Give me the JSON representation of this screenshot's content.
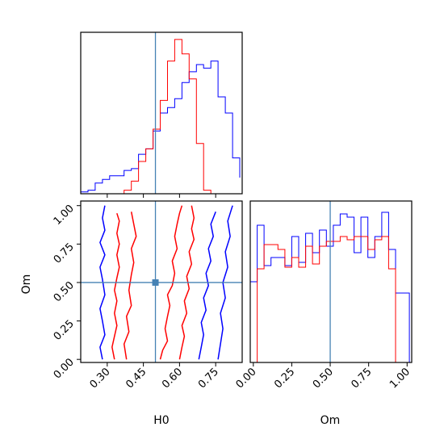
{
  "chart_data": {
    "type": "corner",
    "parameters": [
      "H0",
      "Om"
    ],
    "truths": {
      "H0": 0.5,
      "Om": 0.5
    },
    "colors": {
      "red_run": "#ff0000",
      "blue_run": "#0000ff",
      "truth": "#4682b4"
    },
    "xlabels": [
      "H0",
      "Om"
    ],
    "ylabel": "Om",
    "ticks": {
      "H0": [
        "0.30",
        "0.45",
        "0.60",
        "0.75"
      ],
      "Om": [
        "0.00",
        "0.25",
        "0.50",
        "0.75",
        "1.00"
      ]
    },
    "ranges": {
      "H0": [
        0.19,
        0.86
      ],
      "Om": [
        -0.02,
        1.03
      ]
    },
    "hist_H0": {
      "edges": [
        0.19,
        0.22,
        0.25,
        0.28,
        0.31,
        0.34,
        0.37,
        0.4,
        0.43,
        0.46,
        0.49,
        0.52,
        0.55,
        0.58,
        0.61,
        0.64,
        0.67,
        0.7,
        0.73,
        0.76,
        0.79,
        0.82,
        0.85
      ],
      "series": [
        {
          "color_key": "blue_run",
          "values": [
            0.01,
            0.02,
            0.06,
            0.08,
            0.1,
            0.1,
            0.13,
            0.14,
            0.22,
            0.25,
            0.35,
            0.45,
            0.48,
            0.53,
            0.62,
            0.68,
            0.72,
            0.7,
            0.74,
            0.54,
            0.45,
            0.2,
            0.09
          ]
        },
        {
          "color_key": "red_run",
          "values": [
            0,
            0,
            0,
            0,
            0,
            0,
            0.02,
            0.07,
            0.18,
            0.25,
            0.36,
            0.52,
            0.74,
            0.86,
            0.78,
            0.64,
            0.28,
            0.02,
            0,
            0,
            0,
            0,
            0
          ]
        }
      ]
    },
    "hist_Om": {
      "edges": [
        -0.02,
        0.025,
        0.07,
        0.115,
        0.16,
        0.205,
        0.25,
        0.295,
        0.34,
        0.385,
        0.43,
        0.475,
        0.52,
        0.565,
        0.61,
        0.655,
        0.7,
        0.745,
        0.79,
        0.835,
        0.88,
        0.925,
        0.97,
        1.015
      ],
      "series": [
        {
          "color_key": "blue_run",
          "values": [
            0.5,
            0.85,
            0.6,
            0.65,
            0.65,
            0.6,
            0.78,
            0.62,
            0.8,
            0.68,
            0.82,
            0.72,
            0.85,
            0.92,
            0.9,
            0.68,
            0.9,
            0.65,
            0.78,
            0.93,
            0.7,
            0.43,
            0.43
          ]
        },
        {
          "color_key": "red_run",
          "values": [
            0,
            0.58,
            0.73,
            0.73,
            0.7,
            0.59,
            0.65,
            0.59,
            0.72,
            0.61,
            0.72,
            0.75,
            0.75,
            0.78,
            0.76,
            0.78,
            0.78,
            0.7,
            0.76,
            0.78,
            0.58,
            0,
            0
          ]
        }
      ]
    },
    "contours": [
      {
        "color_key": "red_run",
        "points": [
          [
            0.33,
            0.0
          ],
          [
            0.32,
            0.08
          ],
          [
            0.33,
            0.15
          ],
          [
            0.34,
            0.22
          ],
          [
            0.33,
            0.3
          ],
          [
            0.34,
            0.38
          ],
          [
            0.33,
            0.45
          ],
          [
            0.34,
            0.53
          ],
          [
            0.35,
            0.6
          ],
          [
            0.34,
            0.68
          ],
          [
            0.35,
            0.75
          ],
          [
            0.34,
            0.82
          ],
          [
            0.35,
            0.9
          ],
          [
            0.34,
            0.95
          ]
        ]
      },
      {
        "color_key": "red_run",
        "points": [
          [
            0.38,
            0.0
          ],
          [
            0.37,
            0.1
          ],
          [
            0.39,
            0.18
          ],
          [
            0.38,
            0.28
          ],
          [
            0.4,
            0.35
          ],
          [
            0.39,
            0.45
          ],
          [
            0.4,
            0.55
          ],
          [
            0.41,
            0.63
          ],
          [
            0.4,
            0.72
          ],
          [
            0.42,
            0.8
          ],
          [
            0.41,
            0.88
          ],
          [
            0.4,
            0.96
          ]
        ]
      },
      {
        "color_key": "red_run",
        "points": [
          [
            0.52,
            0.0
          ],
          [
            0.53,
            0.06
          ],
          [
            0.55,
            0.12
          ],
          [
            0.54,
            0.2
          ],
          [
            0.55,
            0.28
          ],
          [
            0.56,
            0.35
          ],
          [
            0.55,
            0.42
          ],
          [
            0.57,
            0.48
          ],
          [
            0.58,
            0.56
          ],
          [
            0.57,
            0.64
          ],
          [
            0.59,
            0.72
          ],
          [
            0.58,
            0.8
          ],
          [
            0.59,
            0.88
          ],
          [
            0.6,
            0.95
          ],
          [
            0.61,
            1.0
          ]
        ]
      },
      {
        "color_key": "red_run",
        "points": [
          [
            0.6,
            0.0
          ],
          [
            0.61,
            0.08
          ],
          [
            0.62,
            0.15
          ],
          [
            0.61,
            0.22
          ],
          [
            0.63,
            0.3
          ],
          [
            0.62,
            0.38
          ],
          [
            0.64,
            0.46
          ],
          [
            0.63,
            0.54
          ],
          [
            0.65,
            0.62
          ],
          [
            0.64,
            0.7
          ],
          [
            0.66,
            0.78
          ],
          [
            0.65,
            0.85
          ],
          [
            0.66,
            0.92
          ],
          [
            0.65,
            1.0
          ]
        ]
      },
      {
        "color_key": "blue_run",
        "points": [
          [
            0.28,
            0.0
          ],
          [
            0.27,
            0.08
          ],
          [
            0.29,
            0.16
          ],
          [
            0.28,
            0.25
          ],
          [
            0.27,
            0.33
          ],
          [
            0.29,
            0.42
          ],
          [
            0.28,
            0.52
          ],
          [
            0.27,
            0.6
          ],
          [
            0.29,
            0.68
          ],
          [
            0.27,
            0.76
          ],
          [
            0.29,
            0.84
          ],
          [
            0.28,
            0.92
          ],
          [
            0.29,
            1.0
          ]
        ]
      },
      {
        "color_key": "blue_run",
        "points": [
          [
            0.68,
            0.0
          ],
          [
            0.69,
            0.08
          ],
          [
            0.7,
            0.16
          ],
          [
            0.69,
            0.24
          ],
          [
            0.71,
            0.32
          ],
          [
            0.7,
            0.4
          ],
          [
            0.72,
            0.48
          ],
          [
            0.71,
            0.56
          ],
          [
            0.73,
            0.64
          ],
          [
            0.72,
            0.72
          ],
          [
            0.74,
            0.8
          ],
          [
            0.73,
            0.88
          ],
          [
            0.75,
            0.96
          ]
        ]
      },
      {
        "color_key": "blue_run",
        "points": [
          [
            0.76,
            0.0
          ],
          [
            0.77,
            0.1
          ],
          [
            0.78,
            0.2
          ],
          [
            0.77,
            0.3
          ],
          [
            0.79,
            0.4
          ],
          [
            0.78,
            0.5
          ],
          [
            0.8,
            0.6
          ],
          [
            0.79,
            0.7
          ],
          [
            0.81,
            0.8
          ],
          [
            0.8,
            0.9
          ],
          [
            0.82,
            1.0
          ]
        ]
      }
    ]
  }
}
